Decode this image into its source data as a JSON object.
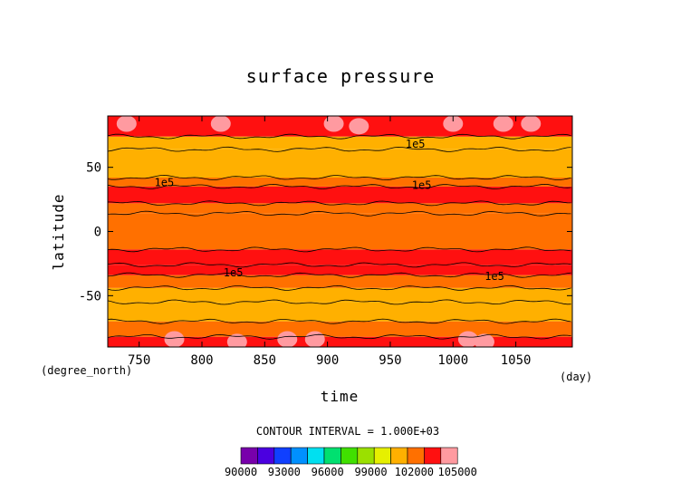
{
  "chart_data": {
    "type": "heatmap",
    "title": "surface pressure",
    "xlabel": "time",
    "ylabel": "latitude",
    "x_unit": "(day)",
    "y_unit": "(degree_north)",
    "xlim": [
      725,
      1095
    ],
    "ylim": [
      -90,
      90
    ],
    "x_ticks": [
      750,
      800,
      850,
      900,
      950,
      1000,
      1050
    ],
    "y_ticks": [
      -50,
      0,
      50
    ],
    "contour_interval_text": "CONTOUR INTERVAL = 1.000E+03",
    "contour_labels": [
      {
        "text": "1e5",
        "x": 970,
        "y": 68
      },
      {
        "text": "1e5",
        "x": 770,
        "y": 38
      },
      {
        "text": "1e5",
        "x": 975,
        "y": 36
      },
      {
        "text": "1e5",
        "x": 825,
        "y": -32
      },
      {
        "text": "1e5",
        "x": 1033,
        "y": -35
      }
    ],
    "colorbar": {
      "colors": [
        "#7800ab",
        "#4b00e0",
        "#1040ff",
        "#0090ff",
        "#00e0f0",
        "#00e070",
        "#40e000",
        "#9be000",
        "#e6f000",
        "#ffb000",
        "#ff7000",
        "#ff1010",
        "#ff9aa0"
      ],
      "labels": [
        "90000",
        "93000",
        "96000",
        "99000",
        "102000",
        "105000"
      ]
    },
    "latitude_bands_pa": [
      {
        "lat": [
          -90,
          -82
        ],
        "value": 101000
      },
      {
        "lat": [
          -82,
          -70
        ],
        "value": 100500
      },
      {
        "lat": [
          -70,
          -55
        ],
        "value": 99500
      },
      {
        "lat": [
          -55,
          -44
        ],
        "value": 99000
      },
      {
        "lat": [
          -44,
          -34
        ],
        "value": 100000
      },
      {
        "lat": [
          -34,
          -26
        ],
        "value": 101200
      },
      {
        "lat": [
          -26,
          -14
        ],
        "value": 101000
      },
      {
        "lat": [
          -14,
          14
        ],
        "value": 100400
      },
      {
        "lat": [
          14,
          22
        ],
        "value": 100800
      },
      {
        "lat": [
          22,
          35
        ],
        "value": 101100
      },
      {
        "lat": [
          35,
          42
        ],
        "value": 100000
      },
      {
        "lat": [
          42,
          64
        ],
        "value": 99000
      },
      {
        "lat": [
          64,
          74
        ],
        "value": 99800
      },
      {
        "lat": [
          74,
          90
        ],
        "value": 101000
      }
    ],
    "high_pressure_cells": [
      {
        "x": 778,
        "lat": -84,
        "value": 102600
      },
      {
        "x": 828,
        "lat": -86,
        "value": 102400
      },
      {
        "x": 868,
        "lat": -84,
        "value": 102600
      },
      {
        "x": 890,
        "lat": -84,
        "value": 102400
      },
      {
        "x": 1012,
        "lat": -84,
        "value": 102600
      },
      {
        "x": 1025,
        "lat": -86,
        "value": 102400
      },
      {
        "x": 740,
        "lat": 84,
        "value": 102200
      },
      {
        "x": 815,
        "lat": 84,
        "value": 102200
      },
      {
        "x": 905,
        "lat": 84,
        "value": 102400
      },
      {
        "x": 925,
        "lat": 82,
        "value": 102600
      },
      {
        "x": 1000,
        "lat": 84,
        "value": 102800
      },
      {
        "x": 1040,
        "lat": 84,
        "value": 102400
      },
      {
        "x": 1062,
        "lat": 84,
        "value": 102200
      }
    ]
  }
}
